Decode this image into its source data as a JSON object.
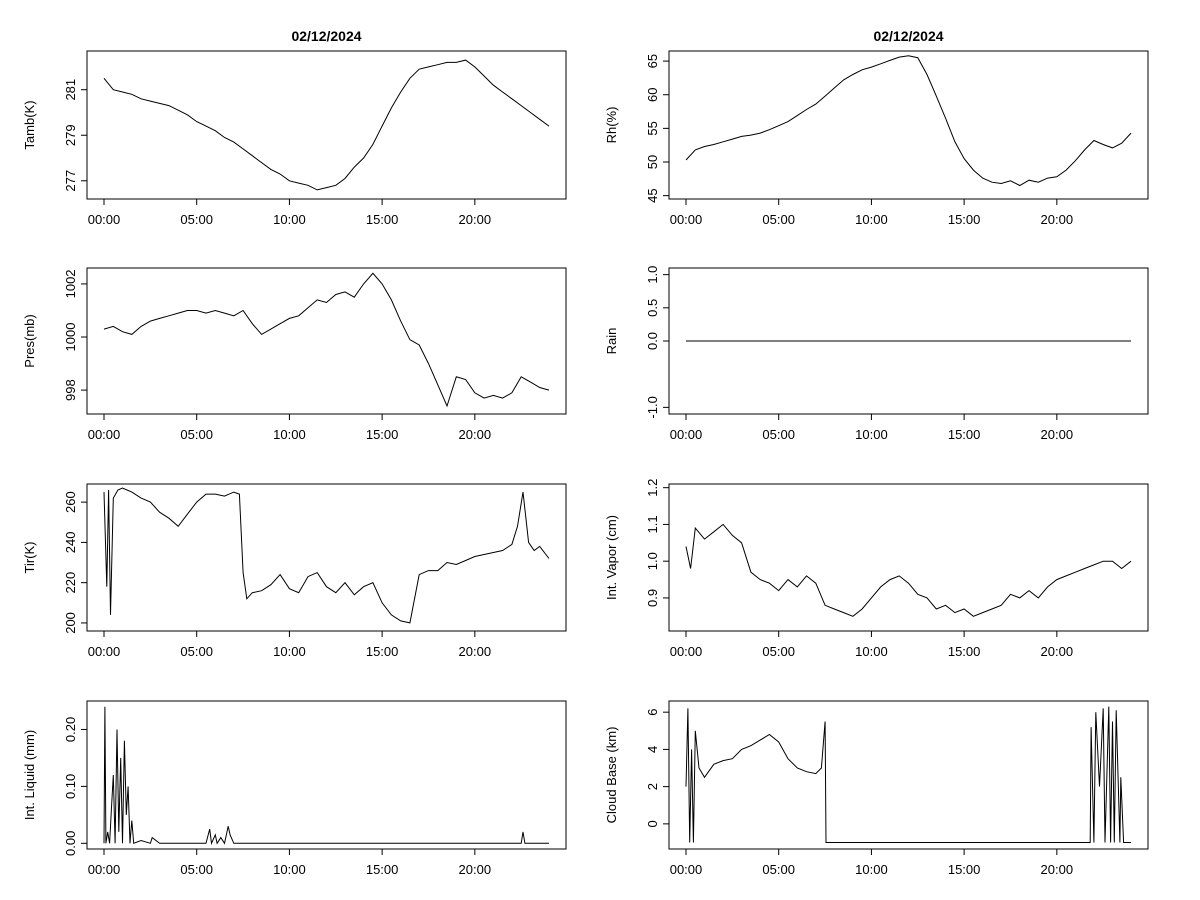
{
  "chart_data": [
    {
      "type": "line",
      "title": "02/12/2024",
      "ylabel": "Tamb(K)",
      "ylim": [
        276.2,
        282.7
      ],
      "yticks": [
        277,
        279,
        281
      ],
      "xticks": [
        "00:00",
        "05:00",
        "10:00",
        "15:00",
        "20:00"
      ],
      "x_hours": [
        0,
        0.5,
        1,
        1.5,
        2,
        2.5,
        3,
        3.5,
        4,
        4.5,
        5,
        5.5,
        6,
        6.5,
        7,
        7.5,
        8,
        8.5,
        9,
        9.5,
        10,
        10.5,
        11,
        11.5,
        12,
        12.5,
        13,
        13.5,
        14,
        14.5,
        15,
        15.5,
        16,
        16.5,
        17,
        17.5,
        18,
        18.5,
        19,
        19.5,
        20,
        20.5,
        21,
        21.5,
        22,
        22.5,
        23,
        23.5,
        24
      ],
      "values": [
        281.5,
        281.0,
        280.9,
        280.8,
        280.6,
        280.5,
        280.4,
        280.3,
        280.1,
        279.9,
        279.6,
        279.4,
        279.2,
        278.9,
        278.7,
        278.4,
        278.1,
        277.8,
        277.5,
        277.3,
        277.0,
        276.9,
        276.8,
        276.6,
        276.7,
        276.8,
        277.1,
        277.6,
        278.0,
        278.6,
        279.4,
        280.2,
        280.9,
        281.5,
        281.9,
        282.0,
        282.1,
        282.2,
        282.2,
        282.3,
        282.0,
        281.6,
        281.2,
        280.9,
        280.6,
        280.3,
        280.0,
        279.7,
        279.4
      ]
    },
    {
      "type": "line",
      "title": "02/12/2024",
      "ylabel": "Rh(%)",
      "ylim": [
        44.5,
        66.5
      ],
      "yticks": [
        45,
        50,
        55,
        60,
        65
      ],
      "xticks": [
        "00:00",
        "05:00",
        "10:00",
        "15:00",
        "20:00"
      ],
      "x_hours": [
        0,
        0.5,
        1,
        1.5,
        2,
        2.5,
        3,
        3.5,
        4,
        4.5,
        5,
        5.5,
        6,
        6.5,
        7,
        7.5,
        8,
        8.5,
        9,
        9.5,
        10,
        10.5,
        11,
        11.5,
        12,
        12.5,
        13,
        13.5,
        14,
        14.5,
        15,
        15.5,
        16,
        16.5,
        17,
        17.5,
        18,
        18.5,
        19,
        19.5,
        20,
        20.5,
        21,
        21.5,
        22,
        22.5,
        23,
        23.5,
        24
      ],
      "values": [
        50.3,
        51.8,
        52.3,
        52.6,
        53.0,
        53.4,
        53.8,
        54.0,
        54.3,
        54.8,
        55.4,
        56.0,
        56.9,
        57.8,
        58.6,
        59.8,
        61.0,
        62.2,
        63.0,
        63.7,
        64.1,
        64.6,
        65.1,
        65.6,
        65.8,
        65.5,
        63.0,
        59.8,
        56.5,
        53.0,
        50.5,
        48.8,
        47.6,
        47.0,
        46.8,
        47.2,
        46.5,
        47.3,
        47.0,
        47.6,
        47.8,
        48.8,
        50.2,
        51.8,
        53.2,
        52.6,
        52.1,
        52.8,
        54.3
      ]
    },
    {
      "type": "line",
      "ylabel": "Pres(mb)",
      "ylim": [
        997.1,
        1002.6
      ],
      "yticks": [
        998,
        1000,
        1002
      ],
      "xticks": [
        "00:00",
        "05:00",
        "10:00",
        "15:00",
        "20:00"
      ],
      "x_hours": [
        0,
        0.5,
        1,
        1.5,
        2,
        2.5,
        3,
        3.5,
        4,
        4.5,
        5,
        5.5,
        6,
        6.5,
        7,
        7.5,
        8,
        8.5,
        9,
        9.5,
        10,
        10.5,
        11,
        11.5,
        12,
        12.5,
        13,
        13.5,
        14,
        14.5,
        15,
        15.5,
        16,
        16.5,
        17,
        17.5,
        18,
        18.5,
        19,
        19.5,
        20,
        20.5,
        21,
        21.5,
        22,
        22.5,
        23,
        23.5,
        24
      ],
      "values": [
        1000.3,
        1000.4,
        1000.2,
        1000.1,
        1000.4,
        1000.6,
        1000.7,
        1000.8,
        1000.9,
        1001.0,
        1001.0,
        1000.9,
        1001.0,
        1000.9,
        1000.8,
        1001.0,
        1000.5,
        1000.1,
        1000.3,
        1000.5,
        1000.7,
        1000.8,
        1001.1,
        1001.4,
        1001.3,
        1001.6,
        1001.7,
        1001.5,
        1002.0,
        1002.4,
        1002.0,
        1001.4,
        1000.6,
        999.9,
        999.7,
        999.0,
        998.2,
        997.4,
        998.5,
        998.4,
        997.9,
        997.7,
        997.8,
        997.7,
        997.9,
        998.5,
        998.3,
        998.1,
        998.0
      ]
    },
    {
      "type": "line",
      "ylabel": "Rain",
      "ylim": [
        -1.1,
        1.1
      ],
      "yticks": [
        -1.0,
        0.0,
        0.5,
        1.0
      ],
      "ytick_labels": [
        "-1.0",
        "0.0",
        "0.5",
        "1.0"
      ],
      "xticks": [
        "00:00",
        "05:00",
        "10:00",
        "15:00",
        "20:00"
      ],
      "x_hours": [
        0,
        24
      ],
      "values": [
        0,
        0
      ]
    },
    {
      "type": "line",
      "ylabel": "Tir(K)",
      "ylim": [
        196,
        269
      ],
      "yticks": [
        200,
        220,
        240,
        260
      ],
      "xticks": [
        "00:00",
        "05:00",
        "10:00",
        "15:00",
        "20:00"
      ],
      "x_hours": [
        0,
        0.15,
        0.25,
        0.35,
        0.5,
        0.75,
        1,
        1.5,
        2,
        2.5,
        3,
        3.5,
        4,
        4.5,
        5,
        5.5,
        6,
        6.5,
        7,
        7.3,
        7.5,
        7.7,
        8,
        8.5,
        9,
        9.5,
        10,
        10.5,
        11,
        11.5,
        12,
        12.5,
        13,
        13.5,
        14,
        14.5,
        15,
        15.5,
        16,
        16.5,
        17,
        17.5,
        18,
        18.5,
        19,
        19.5,
        20,
        20.5,
        21,
        21.5,
        22,
        22.3,
        22.6,
        22.9,
        23.2,
        23.5,
        24
      ],
      "values": [
        265,
        218,
        266,
        204,
        262,
        266,
        267,
        265,
        262,
        260,
        255,
        252,
        248,
        254,
        260,
        264,
        264,
        263,
        265,
        264,
        225,
        212,
        215,
        216,
        219,
        224,
        217,
        215,
        223,
        225,
        218,
        215,
        220,
        214,
        218,
        220,
        210,
        204,
        201,
        200,
        224,
        226,
        226,
        230,
        229,
        231,
        233,
        234,
        235,
        236,
        239,
        248,
        265,
        240,
        236,
        238,
        232
      ]
    },
    {
      "type": "line",
      "ylabel": "Int. Vapor (cm)",
      "ylim": [
        0.81,
        1.21
      ],
      "yticks": [
        0.9,
        1.0,
        1.1,
        1.2
      ],
      "ytick_labels": [
        "0.9",
        "1.0",
        "1.1",
        "1.2"
      ],
      "xticks": [
        "00:00",
        "05:00",
        "10:00",
        "15:00",
        "20:00"
      ],
      "x_hours": [
        0,
        0.25,
        0.5,
        1,
        1.5,
        2,
        2.5,
        3,
        3.5,
        4,
        4.5,
        5,
        5.5,
        6,
        6.5,
        7,
        7.5,
        8,
        8.5,
        9,
        9.5,
        10,
        10.5,
        11,
        11.5,
        12,
        12.5,
        13,
        13.5,
        14,
        14.5,
        15,
        15.5,
        16,
        16.5,
        17,
        17.5,
        18,
        18.5,
        19,
        19.5,
        20,
        20.5,
        21,
        21.5,
        22,
        22.5,
        23,
        23.5,
        24
      ],
      "values": [
        1.04,
        0.98,
        1.09,
        1.06,
        1.08,
        1.1,
        1.07,
        1.05,
        0.97,
        0.95,
        0.94,
        0.92,
        0.95,
        0.93,
        0.96,
        0.94,
        0.88,
        0.87,
        0.86,
        0.85,
        0.87,
        0.9,
        0.93,
        0.95,
        0.96,
        0.94,
        0.91,
        0.9,
        0.87,
        0.88,
        0.86,
        0.87,
        0.85,
        0.86,
        0.87,
        0.88,
        0.91,
        0.9,
        0.92,
        0.9,
        0.93,
        0.95,
        0.96,
        0.97,
        0.98,
        0.99,
        1.0,
        1.0,
        0.98,
        1.0
      ]
    },
    {
      "type": "line",
      "ylabel": "Int. Liquid (mm)",
      "ylim": [
        -0.01,
        0.25
      ],
      "yticks": [
        0.0,
        0.1,
        0.2
      ],
      "ytick_labels": [
        "0.00",
        "0.10",
        "0.20"
      ],
      "xticks": [
        "00:00",
        "05:00",
        "10:00",
        "15:00",
        "20:00"
      ],
      "x_hours": [
        0,
        0.05,
        0.1,
        0.2,
        0.3,
        0.4,
        0.5,
        0.6,
        0.7,
        0.8,
        0.9,
        1.0,
        1.1,
        1.2,
        1.3,
        1.4,
        1.5,
        1.6,
        2.0,
        2.5,
        2.6,
        3.0,
        5.5,
        5.7,
        5.8,
        6.0,
        6.1,
        6.3,
        6.5,
        6.7,
        6.8,
        7.0,
        22.5,
        22.6,
        22.7,
        24
      ],
      "values": [
        0,
        0.24,
        0,
        0.02,
        0,
        0.06,
        0.12,
        0,
        0.2,
        0.02,
        0.15,
        0,
        0.18,
        0.05,
        0.1,
        0,
        0.04,
        0,
        0.005,
        0,
        0.01,
        0,
        0,
        0.025,
        0,
        0.015,
        0,
        0.01,
        0,
        0.03,
        0.015,
        0,
        0,
        0.02,
        0,
        0
      ]
    },
    {
      "type": "line",
      "ylabel": "Cloud Base (km)",
      "ylim": [
        -1.35,
        6.6
      ],
      "yticks": [
        0,
        2,
        4,
        6
      ],
      "xticks": [
        "00:00",
        "05:00",
        "10:00",
        "15:00",
        "20:00"
      ],
      "x_hours": [
        0,
        0.1,
        0.2,
        0.3,
        0.4,
        0.5,
        0.7,
        1,
        1.5,
        2,
        2.5,
        3,
        3.5,
        4,
        4.5,
        5,
        5.5,
        6,
        6.5,
        7,
        7.3,
        7.5,
        7.55,
        7.7,
        21.8,
        21.85,
        22.0,
        22.1,
        22.3,
        22.5,
        22.6,
        22.8,
        22.9,
        23.0,
        23.1,
        23.2,
        23.4,
        23.45,
        23.6,
        24
      ],
      "values": [
        2.0,
        6.2,
        -1.0,
        4.0,
        -1.0,
        5.0,
        3.0,
        2.5,
        3.2,
        3.4,
        3.5,
        4.0,
        4.2,
        4.5,
        4.8,
        4.4,
        3.5,
        3.0,
        2.8,
        2.7,
        3.0,
        5.5,
        -1.0,
        -1.0,
        -1.0,
        5.2,
        -1.0,
        6.0,
        2.0,
        6.2,
        -1.0,
        6.3,
        -1.0,
        5.5,
        -1.0,
        6.1,
        -1.0,
        2.5,
        -1.0,
        -1.0
      ]
    }
  ]
}
